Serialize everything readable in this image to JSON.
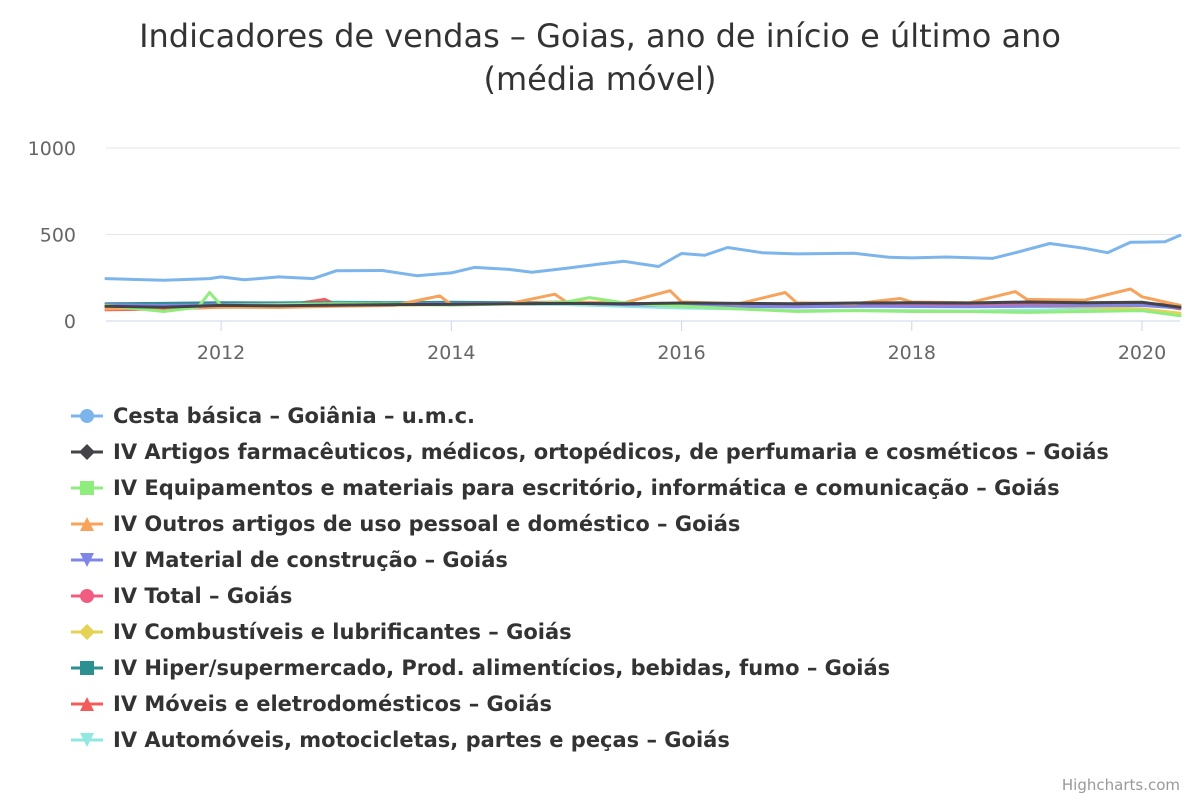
{
  "colors": {
    "gridline": "#e6e6e6",
    "axis_line": "#ccd6eb",
    "title": "#333333",
    "tick": "#666666",
    "credits": "#999999"
  },
  "chart_data": {
    "type": "line",
    "title": "Indicadores de vendas – Goias, ano de início e último ano",
    "subtitle": "(média móvel)",
    "xlim": [
      2011.0,
      2020.33
    ],
    "ylim": [
      0,
      1000
    ],
    "x_ticks": [
      2012,
      2014,
      2016,
      2018,
      2020
    ],
    "x_tick_labels": [
      "2012",
      "2014",
      "2016",
      "2018",
      "2020"
    ],
    "y_ticks": [
      0,
      500,
      1000
    ],
    "y_tick_labels": [
      "0",
      "500",
      "1000"
    ],
    "grid": true,
    "legend_position": "bottom-left",
    "credits": "Highcharts.com",
    "series": [
      {
        "name": "Cesta básica – Goiânia – u.m.c.",
        "color": "#7cb5ec",
        "marker": "circle",
        "points": [
          [
            2011.0,
            245
          ],
          [
            2011.5,
            235
          ],
          [
            2011.9,
            245
          ],
          [
            2012.0,
            255
          ],
          [
            2012.2,
            238
          ],
          [
            2012.5,
            255
          ],
          [
            2012.8,
            245
          ],
          [
            2013.0,
            290
          ],
          [
            2013.4,
            292
          ],
          [
            2013.7,
            262
          ],
          [
            2014.0,
            278
          ],
          [
            2014.2,
            310
          ],
          [
            2014.5,
            298
          ],
          [
            2014.7,
            282
          ],
          [
            2015.0,
            305
          ],
          [
            2015.3,
            330
          ],
          [
            2015.5,
            345
          ],
          [
            2015.8,
            315
          ],
          [
            2016.0,
            390
          ],
          [
            2016.2,
            380
          ],
          [
            2016.4,
            425
          ],
          [
            2016.7,
            395
          ],
          [
            2017.0,
            388
          ],
          [
            2017.5,
            392
          ],
          [
            2017.8,
            368
          ],
          [
            2018.0,
            365
          ],
          [
            2018.3,
            370
          ],
          [
            2018.7,
            362
          ],
          [
            2018.9,
            395
          ],
          [
            2019.2,
            448
          ],
          [
            2019.5,
            420
          ],
          [
            2019.7,
            395
          ],
          [
            2019.9,
            455
          ],
          [
            2020.2,
            458
          ],
          [
            2020.33,
            495
          ]
        ]
      },
      {
        "name": "IV Artigos farmacêuticos, médicos, ortopédicos, de perfumaria e cosméticos – Goiás",
        "color": "#434348",
        "marker": "diamond",
        "points": [
          [
            2011.0,
            85
          ],
          [
            2011.5,
            80
          ],
          [
            2012.0,
            90
          ],
          [
            2012.5,
            88
          ],
          [
            2013.0,
            92
          ],
          [
            2013.5,
            95
          ],
          [
            2014.0,
            96
          ],
          [
            2014.5,
            100
          ],
          [
            2015.0,
            102
          ],
          [
            2015.5,
            100
          ],
          [
            2016.0,
            104
          ],
          [
            2016.5,
            102
          ],
          [
            2017.0,
            100
          ],
          [
            2017.5,
            104
          ],
          [
            2018.0,
            106
          ],
          [
            2018.5,
            104
          ],
          [
            2019.0,
            110
          ],
          [
            2019.5,
            106
          ],
          [
            2020.0,
            108
          ],
          [
            2020.33,
            80
          ]
        ]
      },
      {
        "name": "IV Equipamentos e materiais para escritório, informática e comunicação – Goiás",
        "color": "#90ed7d",
        "marker": "square",
        "points": [
          [
            2011.0,
            90
          ],
          [
            2011.5,
            55
          ],
          [
            2011.8,
            80
          ],
          [
            2011.9,
            165
          ],
          [
            2012.0,
            90
          ],
          [
            2012.5,
            95
          ],
          [
            2013.0,
            100
          ],
          [
            2013.5,
            98
          ],
          [
            2014.0,
            92
          ],
          [
            2014.5,
            98
          ],
          [
            2015.0,
            110
          ],
          [
            2015.2,
            135
          ],
          [
            2015.5,
            105
          ],
          [
            2016.0,
            85
          ],
          [
            2016.5,
            70
          ],
          [
            2017.0,
            55
          ],
          [
            2017.5,
            60
          ],
          [
            2018.0,
            55
          ],
          [
            2018.5,
            55
          ],
          [
            2019.0,
            50
          ],
          [
            2019.5,
            55
          ],
          [
            2020.0,
            60
          ],
          [
            2020.33,
            30
          ]
        ]
      },
      {
        "name": "IV Outros artigos de uso pessoal e doméstico – Goiás",
        "color": "#f7a35c",
        "marker": "triangle",
        "points": [
          [
            2011.0,
            70
          ],
          [
            2011.5,
            75
          ],
          [
            2012.0,
            80
          ],
          [
            2012.5,
            78
          ],
          [
            2013.0,
            85
          ],
          [
            2013.5,
            90
          ],
          [
            2013.9,
            145
          ],
          [
            2014.0,
            95
          ],
          [
            2014.5,
            100
          ],
          [
            2014.9,
            155
          ],
          [
            2015.0,
            110
          ],
          [
            2015.5,
            105
          ],
          [
            2015.9,
            175
          ],
          [
            2016.0,
            110
          ],
          [
            2016.5,
            100
          ],
          [
            2016.9,
            165
          ],
          [
            2017.0,
            105
          ],
          [
            2017.5,
            100
          ],
          [
            2017.9,
            130
          ],
          [
            2018.0,
            110
          ],
          [
            2018.5,
            105
          ],
          [
            2018.9,
            170
          ],
          [
            2019.0,
            125
          ],
          [
            2019.5,
            120
          ],
          [
            2019.9,
            185
          ],
          [
            2020.0,
            140
          ],
          [
            2020.33,
            90
          ]
        ]
      },
      {
        "name": "IV Material de construção – Goiás",
        "color": "#8085e9",
        "marker": "triangle-down",
        "points": [
          [
            2011.0,
            95
          ],
          [
            2011.5,
            90
          ],
          [
            2012.0,
            95
          ],
          [
            2012.5,
            98
          ],
          [
            2013.0,
            100
          ],
          [
            2013.5,
            98
          ],
          [
            2014.0,
            100
          ],
          [
            2014.5,
            102
          ],
          [
            2015.0,
            105
          ],
          [
            2015.5,
            95
          ],
          [
            2016.0,
            90
          ],
          [
            2016.5,
            85
          ],
          [
            2017.0,
            82
          ],
          [
            2017.5,
            85
          ],
          [
            2018.0,
            84
          ],
          [
            2018.5,
            82
          ],
          [
            2019.0,
            85
          ],
          [
            2019.5,
            88
          ],
          [
            2020.0,
            90
          ],
          [
            2020.33,
            75
          ]
        ]
      },
      {
        "name": "IV Total – Goiás",
        "color": "#f15c80",
        "marker": "circle",
        "points": [
          [
            2011.0,
            80
          ],
          [
            2011.5,
            85
          ],
          [
            2012.0,
            90
          ],
          [
            2012.5,
            92
          ],
          [
            2013.0,
            95
          ],
          [
            2013.5,
            96
          ],
          [
            2014.0,
            98
          ],
          [
            2014.5,
            100
          ],
          [
            2015.0,
            102
          ],
          [
            2015.5,
            100
          ],
          [
            2016.0,
            98
          ],
          [
            2016.5,
            96
          ],
          [
            2017.0,
            95
          ],
          [
            2017.5,
            97
          ],
          [
            2018.0,
            98
          ],
          [
            2018.5,
            99
          ],
          [
            2019.0,
            102
          ],
          [
            2019.5,
            104
          ],
          [
            2020.0,
            105
          ],
          [
            2020.33,
            85
          ]
        ]
      },
      {
        "name": "IV Combustíveis e lubrificantes – Goiás",
        "color": "#e4d354",
        "marker": "diamond",
        "points": [
          [
            2011.0,
            75
          ],
          [
            2011.5,
            80
          ],
          [
            2012.0,
            82
          ],
          [
            2012.5,
            85
          ],
          [
            2013.0,
            90
          ],
          [
            2013.5,
            92
          ],
          [
            2014.0,
            95
          ],
          [
            2014.5,
            100
          ],
          [
            2015.0,
            105
          ],
          [
            2015.5,
            100
          ],
          [
            2016.0,
            95
          ],
          [
            2016.5,
            92
          ],
          [
            2017.0,
            90
          ],
          [
            2017.5,
            92
          ],
          [
            2018.0,
            90
          ],
          [
            2018.5,
            88
          ],
          [
            2019.0,
            85
          ],
          [
            2019.5,
            80
          ],
          [
            2020.0,
            70
          ],
          [
            2020.33,
            45
          ]
        ]
      },
      {
        "name": "IV Hiper/supermercado, Prod. alimentícios, bebidas, fumo – Goiás",
        "color": "#2b908f",
        "marker": "square",
        "points": [
          [
            2011.0,
            100
          ],
          [
            2011.5,
            102
          ],
          [
            2012.0,
            105
          ],
          [
            2012.5,
            104
          ],
          [
            2013.0,
            106
          ],
          [
            2013.5,
            105
          ],
          [
            2014.0,
            108
          ],
          [
            2014.5,
            106
          ],
          [
            2015.0,
            104
          ],
          [
            2015.5,
            100
          ],
          [
            2016.0,
            98
          ],
          [
            2016.5,
            96
          ],
          [
            2017.0,
            95
          ],
          [
            2017.5,
            96
          ],
          [
            2018.0,
            97
          ],
          [
            2018.5,
            95
          ],
          [
            2019.0,
            98
          ],
          [
            2019.5,
            100
          ],
          [
            2020.0,
            102
          ],
          [
            2020.33,
            90
          ]
        ]
      },
      {
        "name": "IV Móveis e eletrodomésticos – Goiás",
        "color": "#f45b5b",
        "marker": "triangle",
        "points": [
          [
            2011.0,
            65
          ],
          [
            2011.5,
            70
          ],
          [
            2012.0,
            80
          ],
          [
            2012.5,
            85
          ],
          [
            2012.9,
            125
          ],
          [
            2013.0,
            95
          ],
          [
            2013.5,
            92
          ],
          [
            2014.0,
            100
          ],
          [
            2014.5,
            105
          ],
          [
            2015.0,
            110
          ],
          [
            2015.5,
            100
          ],
          [
            2016.0,
            90
          ],
          [
            2016.5,
            85
          ],
          [
            2017.0,
            82
          ],
          [
            2017.5,
            85
          ],
          [
            2018.0,
            90
          ],
          [
            2018.5,
            88
          ],
          [
            2019.0,
            95
          ],
          [
            2019.5,
            100
          ],
          [
            2020.0,
            105
          ],
          [
            2020.33,
            70
          ]
        ]
      },
      {
        "name": "IV Automóveis, motocicletas, partes e peças – Goiás",
        "color": "#91e8e1",
        "marker": "triangle-down",
        "points": [
          [
            2011.0,
            90
          ],
          [
            2011.5,
            95
          ],
          [
            2012.0,
            100
          ],
          [
            2012.5,
            105
          ],
          [
            2013.0,
            110
          ],
          [
            2013.5,
            105
          ],
          [
            2014.0,
            100
          ],
          [
            2014.5,
            98
          ],
          [
            2015.0,
            95
          ],
          [
            2015.5,
            85
          ],
          [
            2016.0,
            75
          ],
          [
            2016.5,
            70
          ],
          [
            2017.0,
            60
          ],
          [
            2017.5,
            62
          ],
          [
            2018.0,
            60
          ],
          [
            2018.5,
            58
          ],
          [
            2019.0,
            62
          ],
          [
            2019.5,
            65
          ],
          [
            2020.0,
            60
          ],
          [
            2020.33,
            40
          ]
        ]
      }
    ]
  }
}
